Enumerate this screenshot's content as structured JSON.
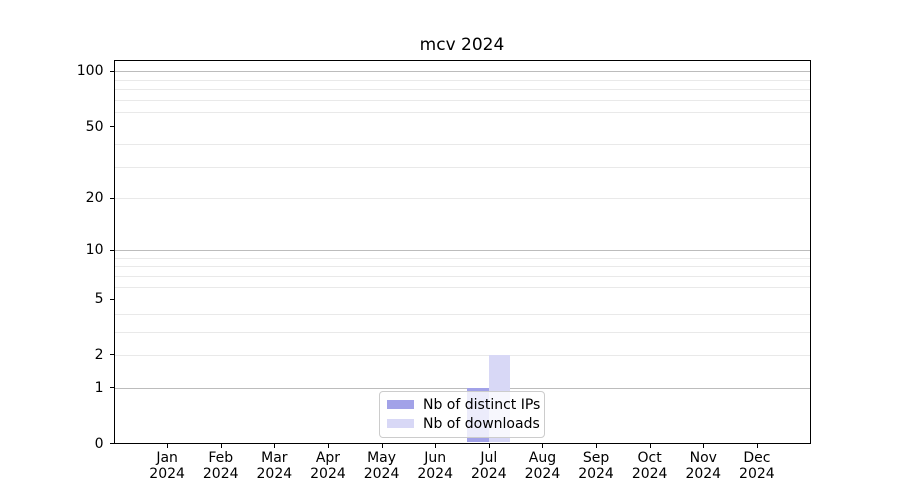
{
  "title": "mcv 2024",
  "colors": {
    "background": "#ffffff",
    "distinct_ips_bar": "#a2a2e8",
    "downloads_bar": "#d8d8f6",
    "grid_major": "#bcbcbc",
    "grid_minor": "#e9e9e9",
    "spine": "#000000",
    "text": "#000000",
    "legend_border": "#cccccc"
  },
  "legend": {
    "items": [
      {
        "label": "Nb of distinct IPs",
        "color": "#a2a2e8"
      },
      {
        "label": "Nb of downloads",
        "color": "#d8d8f6"
      }
    ],
    "position": "lower center"
  },
  "chart_data": {
    "type": "bar",
    "title": "mcv 2024",
    "xlabel": "",
    "ylabel": "",
    "categories": [
      "Jan",
      "Feb",
      "Mar",
      "Apr",
      "May",
      "Jun",
      "Jul",
      "Aug",
      "Sep",
      "Oct",
      "Nov",
      "Dec"
    ],
    "category_year": "2024",
    "series": [
      {
        "name": "Nb of distinct IPs",
        "color": "#a2a2e8",
        "values": [
          0,
          0,
          0,
          0,
          0,
          0,
          1,
          0,
          0,
          0,
          0,
          0
        ]
      },
      {
        "name": "Nb of downloads",
        "color": "#d8d8f6",
        "values": [
          0,
          0,
          0,
          0,
          0,
          0,
          2,
          0,
          0,
          0,
          0,
          0
        ]
      }
    ],
    "yscale": "log10(value+1)",
    "ylim": [
      0,
      115.4
    ],
    "ytick_values": [
      0,
      1,
      2,
      5,
      10,
      20,
      50,
      100
    ],
    "grid": {
      "horizontal": true,
      "vertical": false,
      "major_values": [
        1,
        10,
        100
      ],
      "minor_values": [
        2,
        3,
        4,
        6,
        7,
        8,
        9,
        20,
        30,
        40,
        60,
        70,
        80,
        90
      ]
    },
    "legend_position": "lower center"
  }
}
